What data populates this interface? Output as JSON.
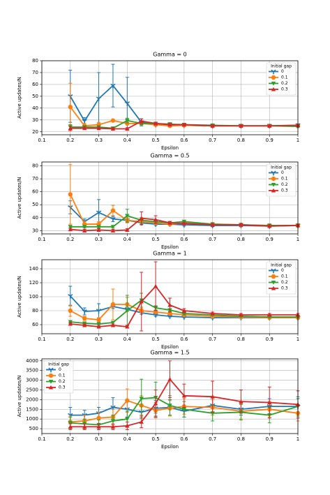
{
  "chart_data": [
    {
      "type": "line",
      "title": "Gamma = 0",
      "x_label": "Epsilon",
      "y_label": "Active updates/N",
      "x": [
        0.2,
        0.25,
        0.3,
        0.35,
        0.4,
        0.45,
        0.5,
        0.55,
        0.6,
        0.7,
        0.8,
        0.9,
        1.0
      ],
      "xlim": [
        0.1,
        1.0
      ],
      "xticks": [
        0.1,
        0.2,
        0.3,
        0.4,
        0.5,
        0.6,
        0.7,
        0.8,
        0.9,
        1.0
      ],
      "ylim": [
        17.5,
        80
      ],
      "yticks": [
        20,
        30,
        40,
        50,
        60,
        70,
        80
      ],
      "grid": true,
      "legend_title": "Initial gap",
      "legend_loc": "upper right",
      "series": [
        {
          "name": "0",
          "color": "#1f77b4",
          "marker": "tri",
          "values": [
            50,
            29,
            48,
            59,
            44,
            28,
            26,
            26,
            25.5,
            25,
            25,
            25,
            25.5
          ],
          "errors": [
            22,
            3,
            22,
            18,
            22,
            3,
            1,
            1,
            1,
            1,
            1,
            1,
            1
          ]
        },
        {
          "name": "0.1",
          "color": "#ff7f0e",
          "marker": "circle",
          "values": [
            41,
            25,
            26,
            29.5,
            27,
            27,
            26,
            25,
            25.5,
            25,
            25,
            25,
            25
          ],
          "errors": [
            20,
            2,
            2,
            1,
            1,
            1,
            1,
            1,
            1,
            1,
            1,
            1,
            1
          ]
        },
        {
          "name": "0.2",
          "color": "#2ca02c",
          "marker": "tri_down",
          "values": [
            24,
            24,
            24,
            23,
            29.5,
            27,
            27,
            26.5,
            26,
            25.5,
            25,
            25,
            24.5
          ],
          "errors": [
            2,
            1,
            1,
            1,
            2,
            1,
            1,
            1,
            1,
            1,
            1,
            1,
            1
          ]
        },
        {
          "name": "0.3",
          "color": "#d62728",
          "marker": "tri_up",
          "values": [
            23,
            23,
            23,
            22.5,
            22.5,
            29,
            27,
            26,
            26,
            25,
            25,
            25,
            25.5
          ],
          "errors": [
            2,
            1,
            1,
            1,
            1,
            2,
            1,
            1,
            1,
            1,
            1,
            1,
            1
          ]
        }
      ]
    },
    {
      "type": "line",
      "title": "Gamma = 0.5",
      "x_label": "Epsilon",
      "y_label": "Active updates/N",
      "x": [
        0.2,
        0.25,
        0.3,
        0.35,
        0.4,
        0.45,
        0.5,
        0.55,
        0.6,
        0.7,
        0.8,
        0.9,
        1.0
      ],
      "xlim": [
        0.1,
        1.0
      ],
      "xticks": [
        0.1,
        0.2,
        0.3,
        0.4,
        0.5,
        0.6,
        0.7,
        0.8,
        0.9,
        1.0
      ],
      "ylim": [
        27.5,
        83
      ],
      "yticks": [
        30,
        40,
        50,
        60,
        70,
        80
      ],
      "grid": true,
      "legend_title": "Initial gap",
      "legend_loc": "upper right",
      "series": [
        {
          "name": "0",
          "color": "#1f77b4",
          "marker": "tri",
          "values": [
            48,
            37,
            44,
            39,
            38,
            36,
            35,
            35,
            34.5,
            34,
            34,
            33.5,
            34
          ],
          "errors": [
            5,
            2,
            10,
            2,
            1,
            1,
            1,
            1,
            1,
            1,
            1,
            1,
            1
          ]
        },
        {
          "name": "0.1",
          "color": "#ff7f0e",
          "marker": "circle",
          "values": [
            58,
            35,
            35,
            45.5,
            38,
            37,
            36,
            35,
            36,
            35,
            34.5,
            34,
            34
          ],
          "errors": [
            23,
            2,
            2,
            4,
            2,
            1,
            1,
            1,
            1,
            1,
            1,
            1,
            1
          ]
        },
        {
          "name": "0.2",
          "color": "#2ca02c",
          "marker": "tri_down",
          "values": [
            33,
            33,
            33,
            33,
            41.5,
            38,
            37,
            36,
            37,
            35,
            34.5,
            34,
            34
          ],
          "errors": [
            1,
            1,
            1,
            1,
            5,
            2,
            1,
            1,
            1,
            1,
            1,
            1,
            1
          ]
        },
        {
          "name": "0.3",
          "color": "#d62728",
          "marker": "tri_up",
          "values": [
            31,
            30,
            30.5,
            30,
            30.5,
            39.5,
            38.5,
            36,
            35.5,
            34.5,
            34.5,
            33.5,
            34
          ],
          "errors": [
            1,
            1,
            1,
            1,
            1,
            5,
            3,
            1,
            1,
            1,
            1,
            1,
            1
          ]
        }
      ]
    },
    {
      "type": "line",
      "title": "Gamma = 1",
      "x_label": "Epsilon",
      "y_label": "Active updates/N",
      "x": [
        0.2,
        0.25,
        0.3,
        0.35,
        0.4,
        0.45,
        0.5,
        0.55,
        0.6,
        0.7,
        0.8,
        0.9,
        1.0
      ],
      "xlim": [
        0.1,
        1.0
      ],
      "xticks": [
        0.1,
        0.2,
        0.3,
        0.4,
        0.5,
        0.6,
        0.7,
        0.8,
        0.9,
        1.0
      ],
      "ylim": [
        47,
        153
      ],
      "yticks": [
        60,
        80,
        100,
        120,
        140
      ],
      "grid": true,
      "legend_title": "Initial gap",
      "legend_loc": "upper right",
      "series": [
        {
          "name": "0",
          "color": "#1f77b4",
          "marker": "tri",
          "values": [
            101,
            79,
            80,
            86,
            82,
            77,
            74,
            72,
            71,
            70,
            70,
            70,
            70
          ],
          "errors": [
            14,
            5,
            10,
            3,
            3,
            2,
            2,
            1,
            1,
            1,
            1,
            1,
            1
          ]
        },
        {
          "name": "0.1",
          "color": "#ff7f0e",
          "marker": "circle",
          "values": [
            80,
            69,
            67,
            89,
            89,
            80,
            78,
            76,
            74,
            72,
            71,
            70,
            70
          ],
          "errors": [
            8,
            3,
            3,
            22,
            10,
            3,
            2,
            2,
            1,
            1,
            1,
            1,
            1
          ]
        },
        {
          "name": "0.2",
          "color": "#2ca02c",
          "marker": "tri_down",
          "values": [
            64,
            62,
            61,
            63,
            80,
            95,
            84,
            81,
            76,
            74,
            72,
            71,
            71
          ],
          "errors": [
            2,
            2,
            2,
            2,
            22,
            10,
            3,
            2,
            2,
            1,
            1,
            1,
            1
          ]
        },
        {
          "name": "0.3",
          "color": "#d62728",
          "marker": "tri_up",
          "values": [
            61,
            59,
            57,
            59,
            57,
            93,
            115,
            88,
            80,
            76,
            74,
            74,
            74
          ],
          "errors": [
            2,
            2,
            2,
            2,
            2,
            42,
            35,
            10,
            3,
            2,
            2,
            2,
            2
          ]
        }
      ]
    },
    {
      "type": "line",
      "title": "Gamma = 1.5",
      "x_label": "Epsilon",
      "y_label": "Active updates/N",
      "x": [
        0.2,
        0.25,
        0.3,
        0.35,
        0.4,
        0.45,
        0.5,
        0.55,
        0.6,
        0.7,
        0.8,
        0.9,
        1.0
      ],
      "xlim": [
        0.1,
        1.0
      ],
      "xticks": [
        0.1,
        0.2,
        0.3,
        0.4,
        0.5,
        0.6,
        0.7,
        0.8,
        0.9,
        1.0
      ],
      "ylim": [
        250,
        4100
      ],
      "yticks": [
        500,
        1000,
        1500,
        2000,
        2500,
        3000,
        3500,
        4000
      ],
      "grid": true,
      "legend_title": "Initial gap",
      "legend_loc": "upper left",
      "series": [
        {
          "name": "0",
          "color": "#1f77b4",
          "marker": "tri",
          "values": [
            1200,
            1200,
            1300,
            1600,
            1500,
            1350,
            1550,
            1600,
            1400,
            1700,
            1500,
            1650,
            1650
          ],
          "errors": [
            400,
            250,
            300,
            500,
            400,
            300,
            400,
            400,
            300,
            400,
            300,
            400,
            400
          ]
        },
        {
          "name": "0.1",
          "color": "#ff7f0e",
          "marker": "circle",
          "values": [
            850,
            900,
            1050,
            1100,
            1950,
            1700,
            1450,
            1550,
            1650,
            1600,
            1400,
            1500,
            1300
          ],
          "errors": [
            300,
            300,
            300,
            400,
            600,
            500,
            400,
            400,
            400,
            400,
            400,
            400,
            400
          ]
        },
        {
          "name": "0.2",
          "color": "#2ca02c",
          "marker": "tri_down",
          "values": [
            800,
            750,
            700,
            900,
            1000,
            2050,
            2100,
            1700,
            1500,
            1300,
            1350,
            1200,
            1650
          ],
          "errors": [
            300,
            250,
            250,
            300,
            400,
            1000,
            800,
            500,
            400,
            400,
            400,
            400,
            500
          ]
        },
        {
          "name": "0.3",
          "color": "#d62728",
          "marker": "tri_up",
          "values": [
            600,
            600,
            600,
            600,
            650,
            850,
            1800,
            3050,
            2200,
            2150,
            1900,
            1850,
            1750
          ],
          "errors": [
            150,
            150,
            150,
            150,
            200,
            300,
            700,
            950,
            600,
            800,
            600,
            800,
            700
          ]
        }
      ]
    }
  ]
}
